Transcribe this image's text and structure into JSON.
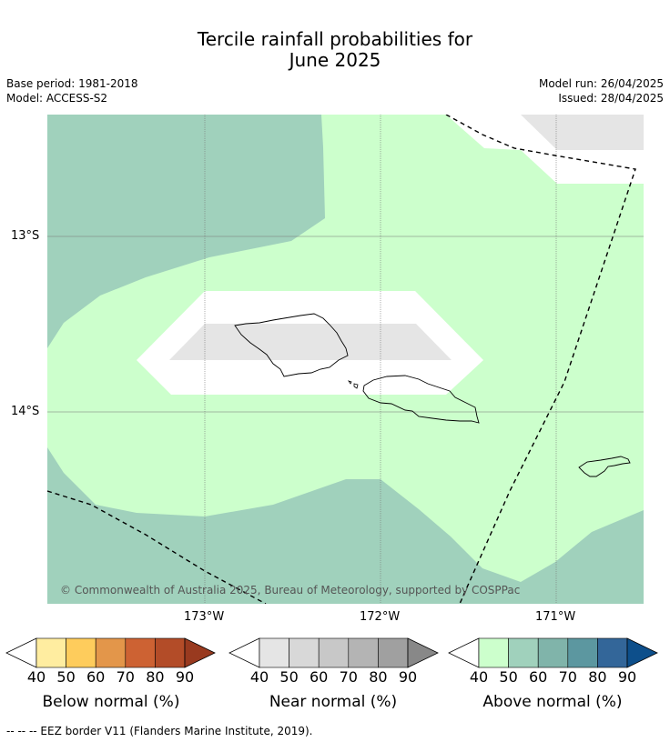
{
  "title_line1": "Tercile rainfall probabilities for",
  "title_line2": "June 2025",
  "base_period": "Base period: 1981-2018",
  "model": "Model: ACCESS-S2",
  "model_run": "Model run: 26/04/2025",
  "issued": "Issued: 28/04/2025",
  "latitude_labels": [
    "13°S",
    "14°S"
  ],
  "longitude_labels": [
    "173°W",
    "172°W",
    "171°W"
  ],
  "copyright": "© Commonwealth of Australia 2025, Bureau of Meteorology, supported by COSPPac",
  "colors": {
    "above_40": "#ccffcc",
    "above_50": "#a0d1bc",
    "near_40": "#e5e5e5",
    "land_outline": "#000000"
  },
  "colorbars": [
    {
      "label": "Below normal (%)",
      "ticks": [
        "40",
        "50",
        "60",
        "70",
        "80",
        "90"
      ],
      "colors": [
        "#ffeda0",
        "#fecc5c",
        "#e3964a",
        "#cd6233",
        "#b34c28",
        "#993a1f"
      ]
    },
    {
      "label": "Near normal (%)",
      "ticks": [
        "40",
        "50",
        "60",
        "70",
        "80",
        "90"
      ],
      "colors": [
        "#e5e5e5",
        "#d8d8d8",
        "#c8c8c8",
        "#b4b4b4",
        "#a0a0a0",
        "#888888"
      ]
    },
    {
      "label": "Above normal (%)",
      "ticks": [
        "40",
        "50",
        "60",
        "70",
        "80",
        "90"
      ],
      "colors": [
        "#ccffcc",
        "#a0d1bc",
        "#80b4aa",
        "#5c97a0",
        "#336699",
        "#0d4f8b"
      ]
    }
  ],
  "footer_legend": "--  --  -- EEZ border V11 (Flanders Marine Institute, 2019)."
}
